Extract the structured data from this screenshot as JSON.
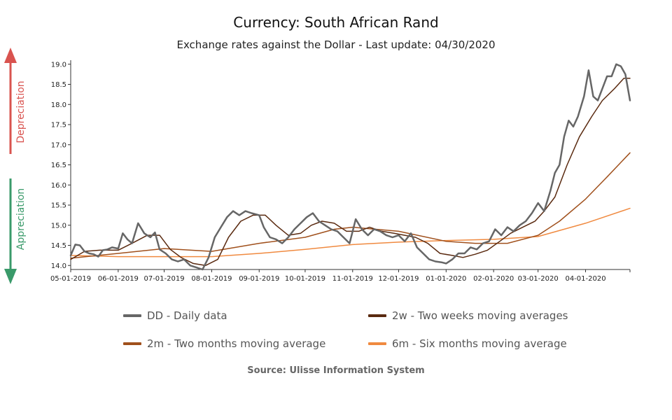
{
  "header": {
    "title": "Currency: South African Rand",
    "subtitle": "Exchange rates against the Dollar - Last update: 04/30/2020"
  },
  "side": {
    "depreciation_label": "Depreciation",
    "appreciation_label": "Appreciation",
    "depreciation_color": "#d9534f",
    "appreciation_color": "#3a9a6a"
  },
  "legend": {
    "dd": "DD - Daily data",
    "w2": "2w - Two weeks moving averages",
    "m2": "2m - Two months moving average",
    "m6": "6m - Six months moving average"
  },
  "source": "Source: Ulisse Information System",
  "chart_data": {
    "type": "line",
    "title": "Currency: South African Rand",
    "subtitle": "Exchange rates against the Dollar - Last update: 04/30/2020",
    "xlabel": "",
    "ylabel": "",
    "x_range": [
      "2019-05-01",
      "2020-04-30"
    ],
    "ylim": [
      13.9,
      19.1
    ],
    "yticks": [
      14.0,
      14.5,
      15.0,
      15.5,
      16.0,
      16.5,
      17.0,
      17.5,
      18.0,
      18.5,
      19.0
    ],
    "ytick_labels": [
      "14.0",
      "14.5",
      "15.0",
      "15.5",
      "16.0",
      "16.5",
      "17.0",
      "17.5",
      "18.0",
      "18.5",
      "19.0"
    ],
    "xticks": [
      "2019-05-01",
      "2019-06-01",
      "2019-07-01",
      "2019-08-01",
      "2019-09-01",
      "2019-10-01",
      "2019-11-01",
      "2019-12-01",
      "2020-01-01",
      "2020-02-01",
      "2020-03-01",
      "2020-04-01"
    ],
    "xtick_labels": [
      "05-01-2019",
      "06-01-2019",
      "07-01-2019",
      "08-01-2019",
      "09-01-2019",
      "10-01-2019",
      "11-01-2019",
      "12-01-2019",
      "01-01-2020",
      "02-01-2020",
      "03-01-2020",
      "04-01-2020"
    ],
    "grid": false,
    "legend_position": "bottom",
    "series": [
      {
        "name": "DD - Daily data",
        "color": "#666666",
        "width": 2.5,
        "points": [
          [
            "2019-05-01",
            14.25
          ],
          [
            "2019-05-04",
            14.52
          ],
          [
            "2019-05-07",
            14.5
          ],
          [
            "2019-05-10",
            14.35
          ],
          [
            "2019-05-13",
            14.3
          ],
          [
            "2019-05-16",
            14.28
          ],
          [
            "2019-05-19",
            14.22
          ],
          [
            "2019-05-22",
            14.38
          ],
          [
            "2019-05-25",
            14.4
          ],
          [
            "2019-05-28",
            14.45
          ],
          [
            "2019-06-01",
            14.42
          ],
          [
            "2019-06-04",
            14.8
          ],
          [
            "2019-06-07",
            14.65
          ],
          [
            "2019-06-10",
            14.55
          ],
          [
            "2019-06-14",
            15.05
          ],
          [
            "2019-06-18",
            14.8
          ],
          [
            "2019-06-22",
            14.7
          ],
          [
            "2019-06-25",
            14.82
          ],
          [
            "2019-06-28",
            14.4
          ],
          [
            "2019-07-02",
            14.3
          ],
          [
            "2019-07-06",
            14.15
          ],
          [
            "2019-07-10",
            14.1
          ],
          [
            "2019-07-14",
            14.15
          ],
          [
            "2019-07-18",
            14.0
          ],
          [
            "2019-07-22",
            13.95
          ],
          [
            "2019-07-26",
            13.9
          ],
          [
            "2019-07-30",
            14.2
          ],
          [
            "2019-08-03",
            14.7
          ],
          [
            "2019-08-07",
            14.95
          ],
          [
            "2019-08-11",
            15.2
          ],
          [
            "2019-08-15",
            15.35
          ],
          [
            "2019-08-19",
            15.25
          ],
          [
            "2019-08-23",
            15.35
          ],
          [
            "2019-08-27",
            15.3
          ],
          [
            "2019-09-01",
            15.25
          ],
          [
            "2019-09-04",
            14.95
          ],
          [
            "2019-09-08",
            14.7
          ],
          [
            "2019-09-12",
            14.65
          ],
          [
            "2019-09-16",
            14.55
          ],
          [
            "2019-09-20",
            14.7
          ],
          [
            "2019-09-24",
            14.9
          ],
          [
            "2019-09-28",
            15.05
          ],
          [
            "2019-10-02",
            15.2
          ],
          [
            "2019-10-06",
            15.3
          ],
          [
            "2019-10-10",
            15.1
          ],
          [
            "2019-10-14",
            15.0
          ],
          [
            "2019-10-18",
            14.9
          ],
          [
            "2019-10-22",
            14.85
          ],
          [
            "2019-10-26",
            14.7
          ],
          [
            "2019-10-30",
            14.55
          ],
          [
            "2019-11-03",
            15.15
          ],
          [
            "2019-11-07",
            14.9
          ],
          [
            "2019-11-11",
            14.75
          ],
          [
            "2019-11-15",
            14.9
          ],
          [
            "2019-11-19",
            14.85
          ],
          [
            "2019-11-23",
            14.75
          ],
          [
            "2019-11-27",
            14.7
          ],
          [
            "2019-12-01",
            14.75
          ],
          [
            "2019-12-05",
            14.6
          ],
          [
            "2019-12-09",
            14.8
          ],
          [
            "2019-12-13",
            14.45
          ],
          [
            "2019-12-17",
            14.3
          ],
          [
            "2019-12-21",
            14.15
          ],
          [
            "2019-12-25",
            14.1
          ],
          [
            "2019-12-29",
            14.08
          ],
          [
            "2020-01-01",
            14.05
          ],
          [
            "2020-01-05",
            14.15
          ],
          [
            "2020-01-09",
            14.3
          ],
          [
            "2020-01-13",
            14.3
          ],
          [
            "2020-01-17",
            14.45
          ],
          [
            "2020-01-21",
            14.4
          ],
          [
            "2020-01-25",
            14.55
          ],
          [
            "2020-01-29",
            14.6
          ],
          [
            "2020-02-02",
            14.9
          ],
          [
            "2020-02-06",
            14.75
          ],
          [
            "2020-02-10",
            14.95
          ],
          [
            "2020-02-14",
            14.85
          ],
          [
            "2020-02-18",
            15.0
          ],
          [
            "2020-02-22",
            15.1
          ],
          [
            "2020-02-26",
            15.3
          ],
          [
            "2020-03-01",
            15.55
          ],
          [
            "2020-03-05",
            15.35
          ],
          [
            "2020-03-09",
            15.85
          ],
          [
            "2020-03-12",
            16.3
          ],
          [
            "2020-03-15",
            16.5
          ],
          [
            "2020-03-18",
            17.2
          ],
          [
            "2020-03-21",
            17.6
          ],
          [
            "2020-03-24",
            17.45
          ],
          [
            "2020-03-27",
            17.7
          ],
          [
            "2020-03-31",
            18.2
          ],
          [
            "2020-04-03",
            18.85
          ],
          [
            "2020-04-06",
            18.2
          ],
          [
            "2020-04-09",
            18.1
          ],
          [
            "2020-04-12",
            18.4
          ],
          [
            "2020-04-15",
            18.7
          ],
          [
            "2020-04-18",
            18.7
          ],
          [
            "2020-04-21",
            19.0
          ],
          [
            "2020-04-24",
            18.95
          ],
          [
            "2020-04-27",
            18.75
          ],
          [
            "2020-04-30",
            18.1
          ]
        ]
      },
      {
        "name": "2w - Two weeks moving averages",
        "color": "#5a2a10",
        "width": 1.5,
        "points": [
          [
            "2019-05-01",
            14.15
          ],
          [
            "2019-05-10",
            14.35
          ],
          [
            "2019-05-20",
            14.38
          ],
          [
            "2019-06-01",
            14.38
          ],
          [
            "2019-06-10",
            14.55
          ],
          [
            "2019-06-20",
            14.75
          ],
          [
            "2019-06-28",
            14.75
          ],
          [
            "2019-07-05",
            14.4
          ],
          [
            "2019-07-12",
            14.2
          ],
          [
            "2019-07-20",
            14.05
          ],
          [
            "2019-07-28",
            14.0
          ],
          [
            "2019-08-05",
            14.15
          ],
          [
            "2019-08-12",
            14.7
          ],
          [
            "2019-08-20",
            15.1
          ],
          [
            "2019-08-28",
            15.25
          ],
          [
            "2019-09-05",
            15.25
          ],
          [
            "2019-09-12",
            15.0
          ],
          [
            "2019-09-20",
            14.75
          ],
          [
            "2019-09-28",
            14.8
          ],
          [
            "2019-10-05",
            15.0
          ],
          [
            "2019-10-12",
            15.1
          ],
          [
            "2019-10-20",
            15.05
          ],
          [
            "2019-10-28",
            14.85
          ],
          [
            "2019-11-05",
            14.85
          ],
          [
            "2019-11-12",
            14.95
          ],
          [
            "2019-11-20",
            14.85
          ],
          [
            "2019-11-28",
            14.8
          ],
          [
            "2019-12-05",
            14.75
          ],
          [
            "2019-12-12",
            14.7
          ],
          [
            "2019-12-20",
            14.55
          ],
          [
            "2019-12-28",
            14.3
          ],
          [
            "2020-01-05",
            14.25
          ],
          [
            "2020-01-12",
            14.2
          ],
          [
            "2020-01-20",
            14.28
          ],
          [
            "2020-01-28",
            14.38
          ],
          [
            "2020-02-05",
            14.6
          ],
          [
            "2020-02-12",
            14.8
          ],
          [
            "2020-02-20",
            14.95
          ],
          [
            "2020-02-28",
            15.1
          ],
          [
            "2020-03-05",
            15.35
          ],
          [
            "2020-03-12",
            15.7
          ],
          [
            "2020-03-20",
            16.5
          ],
          [
            "2020-03-28",
            17.2
          ],
          [
            "2020-04-05",
            17.7
          ],
          [
            "2020-04-12",
            18.1
          ],
          [
            "2020-04-20",
            18.4
          ],
          [
            "2020-04-26",
            18.65
          ],
          [
            "2020-04-30",
            18.65
          ]
        ]
      },
      {
        "name": "2m - Two months moving average",
        "color": "#a0501c",
        "width": 1.5,
        "points": [
          [
            "2019-05-01",
            14.18
          ],
          [
            "2019-06-01",
            14.3
          ],
          [
            "2019-07-01",
            14.42
          ],
          [
            "2019-08-01",
            14.35
          ],
          [
            "2019-09-01",
            14.55
          ],
          [
            "2019-10-01",
            14.7
          ],
          [
            "2019-10-20",
            14.9
          ],
          [
            "2019-11-01",
            14.95
          ],
          [
            "2019-12-01",
            14.85
          ],
          [
            "2020-01-01",
            14.6
          ],
          [
            "2020-01-20",
            14.55
          ],
          [
            "2020-02-10",
            14.55
          ],
          [
            "2020-03-01",
            14.75
          ],
          [
            "2020-03-15",
            15.1
          ],
          [
            "2020-04-01",
            15.65
          ],
          [
            "2020-04-15",
            16.2
          ],
          [
            "2020-04-30",
            16.8
          ]
        ]
      },
      {
        "name": "6m - Six months moving average",
        "color": "#f08a40",
        "width": 1.5,
        "points": [
          [
            "2019-05-01",
            14.25
          ],
          [
            "2019-06-01",
            14.22
          ],
          [
            "2019-07-01",
            14.22
          ],
          [
            "2019-08-01",
            14.22
          ],
          [
            "2019-09-01",
            14.3
          ],
          [
            "2019-10-01",
            14.4
          ],
          [
            "2019-11-01",
            14.52
          ],
          [
            "2019-12-01",
            14.58
          ],
          [
            "2020-01-01",
            14.62
          ],
          [
            "2020-02-01",
            14.65
          ],
          [
            "2020-03-01",
            14.72
          ],
          [
            "2020-04-01",
            15.05
          ],
          [
            "2020-04-30",
            15.42
          ]
        ]
      }
    ]
  }
}
